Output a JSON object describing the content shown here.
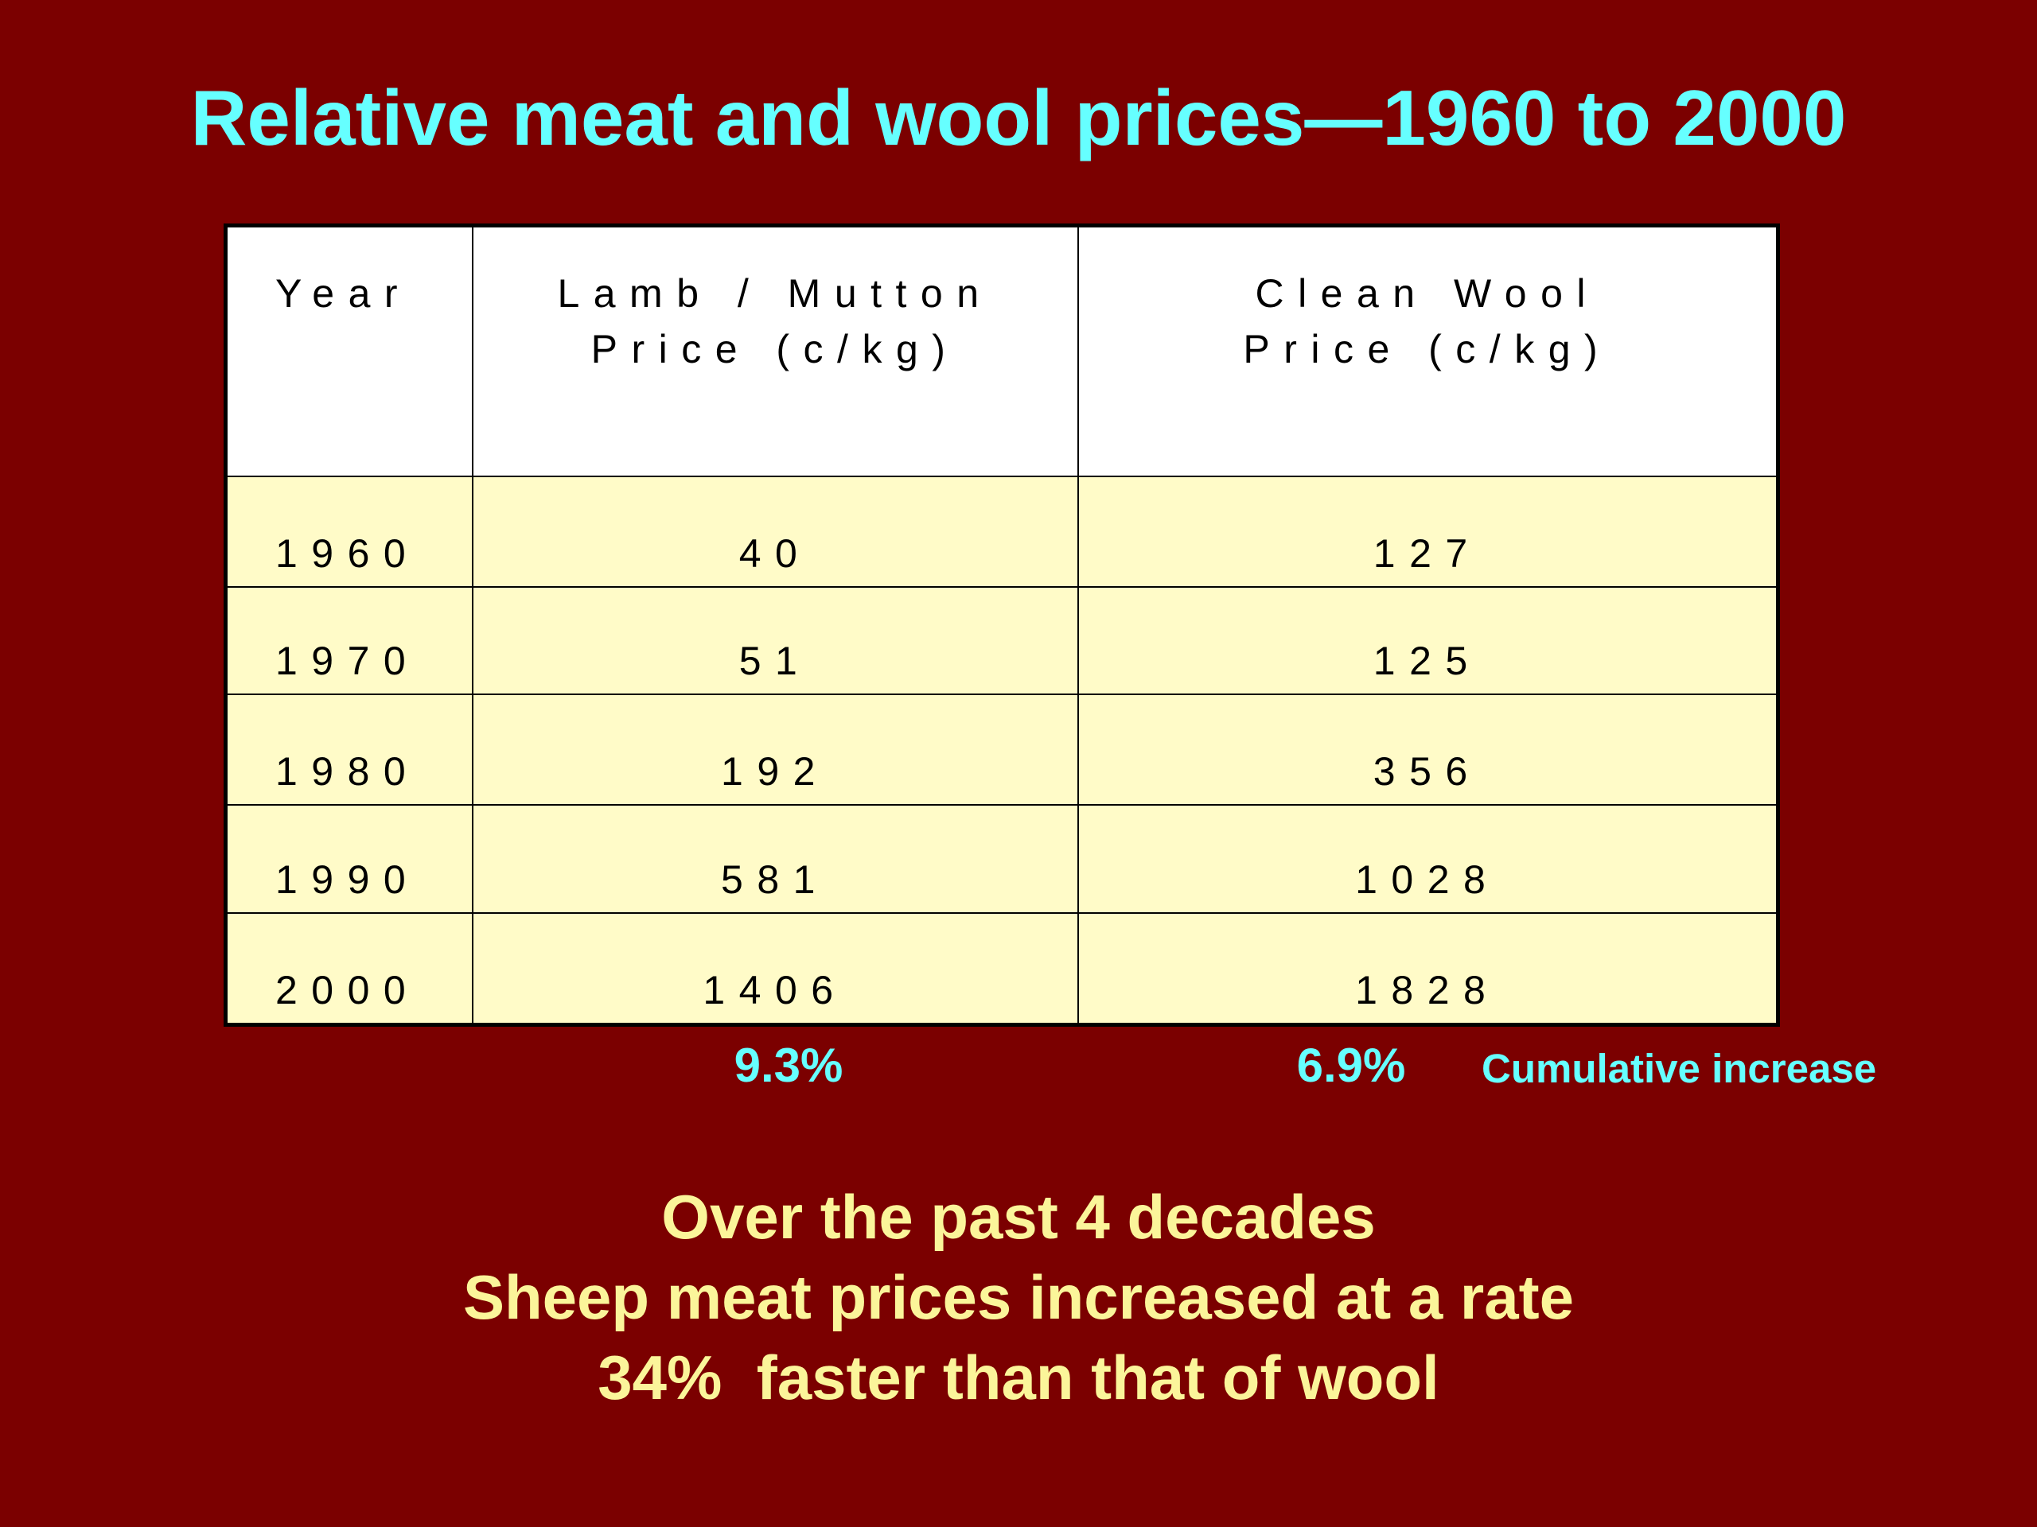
{
  "title": "Relative meat and wool prices—1960 to 2000",
  "table": {
    "header": [
      [
        "Year"
      ],
      [
        "Lamb / Mutton",
        "Price (c/kg)"
      ],
      [
        "Clean Wool",
        "Price (c/kg)"
      ]
    ],
    "rows": [
      [
        "1960",
        "40",
        "127"
      ],
      [
        "1970",
        "51",
        "125"
      ],
      [
        "1980",
        "192",
        "356"
      ],
      [
        "1990",
        "581",
        "1028"
      ],
      [
        "2000",
        "1406",
        "1828"
      ]
    ]
  },
  "summary": {
    "meat_rate": "9.3%",
    "wool_rate": "6.9%",
    "label": "Cumulative increase"
  },
  "conclusion": [
    "Over the past 4 decades",
    "Sheep meat prices increased at a rate",
    "34%  faster than that of wool"
  ]
}
